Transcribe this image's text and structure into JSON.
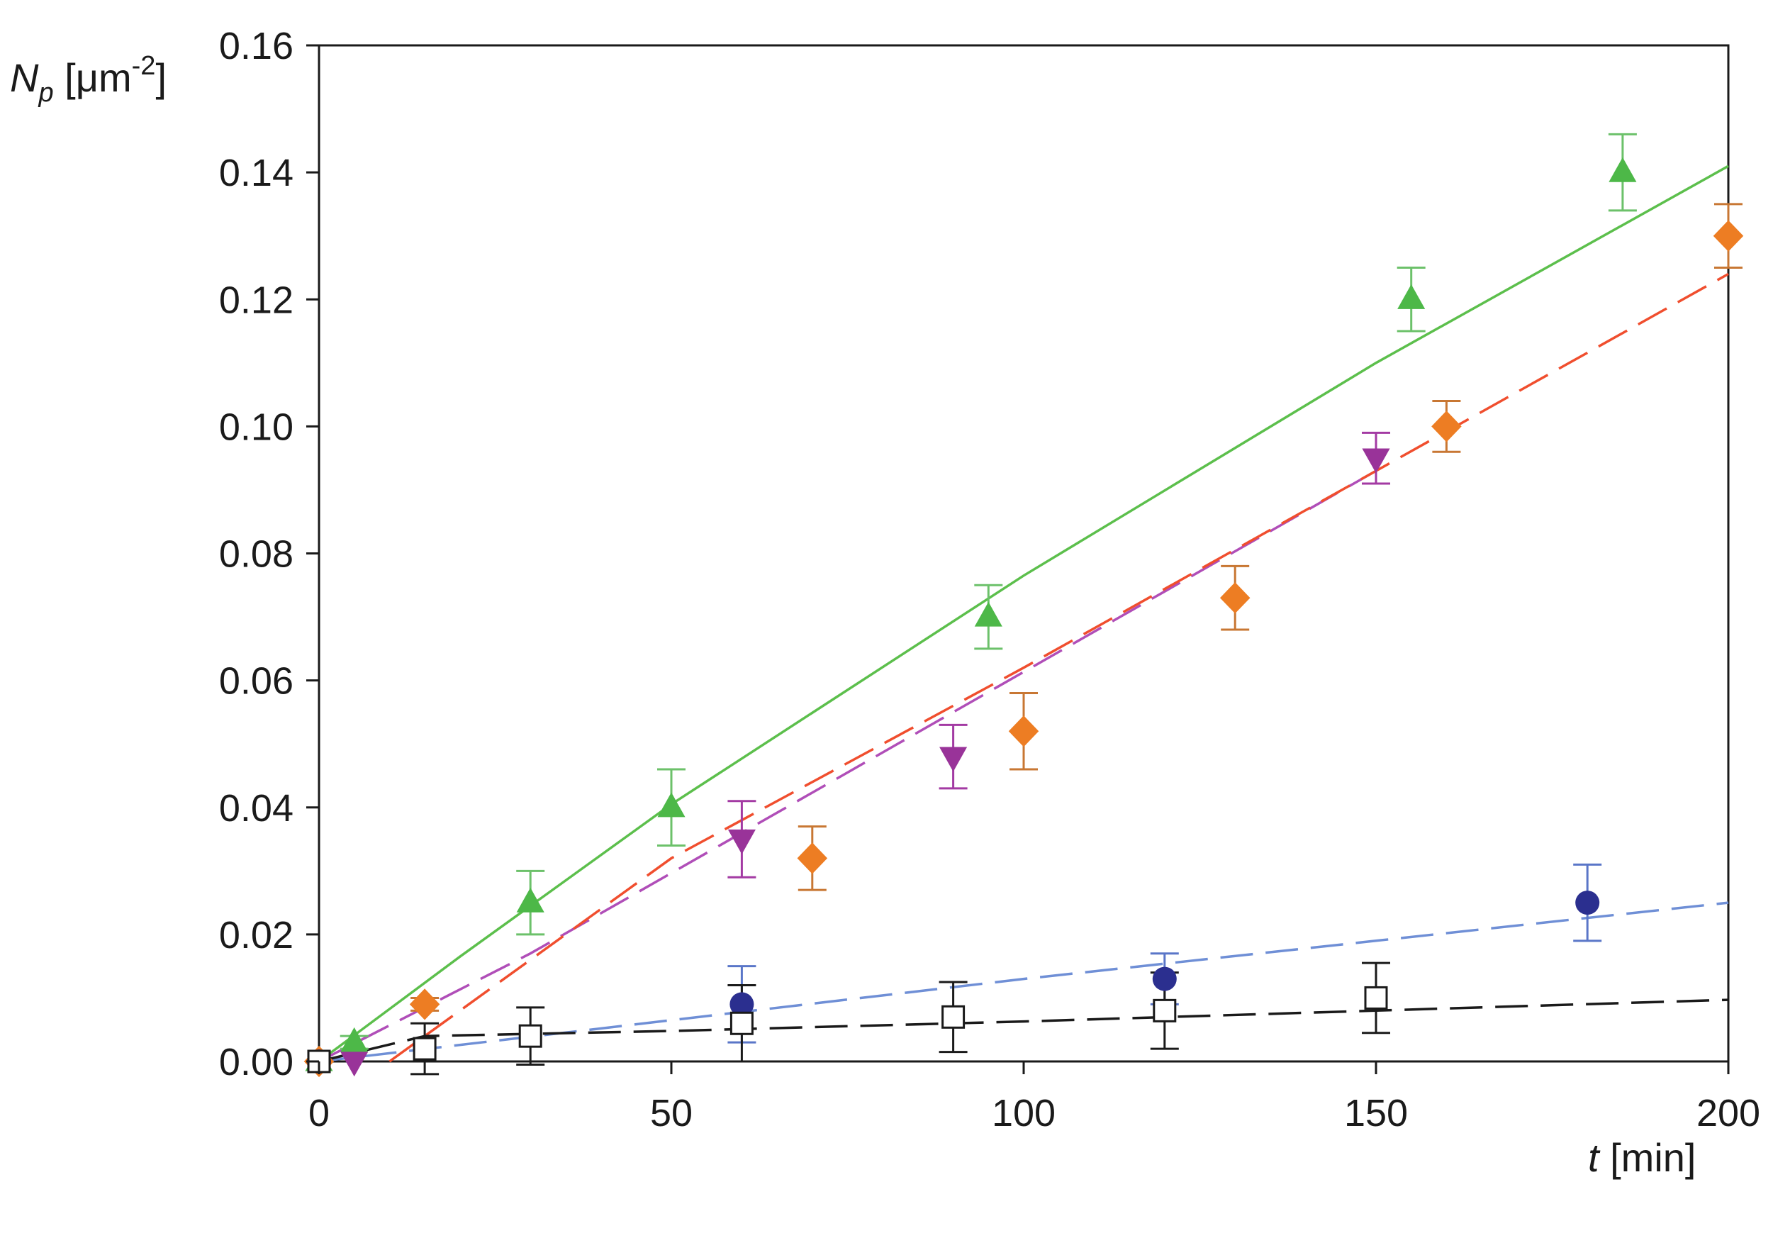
{
  "chart_data": {
    "type": "scatter",
    "title": "",
    "xlabel": {
      "var": "t",
      "unit": "[min]"
    },
    "ylabel": {
      "var": "N",
      "sub": "p",
      "unit_pre": "[μm",
      "sup": "-2",
      "unit_post": "]"
    },
    "xlim": [
      0,
      200
    ],
    "ylim": [
      0,
      0.16
    ],
    "xticks": [
      0,
      50,
      100,
      150,
      200
    ],
    "yticks": [
      0.0,
      0.02,
      0.04,
      0.06,
      0.08,
      0.1,
      0.12,
      0.14,
      0.16
    ],
    "ytick_decimals": 2,
    "grid": false,
    "legend": "none",
    "series": [
      {
        "marker": "triangle-up",
        "color": "#4db848",
        "errcolor": "#6cc16a",
        "points": [
          {
            "x": 0,
            "y": 0.0,
            "err": 0.0
          },
          {
            "x": 5,
            "y": 0.003,
            "err": 0.001
          },
          {
            "x": 30,
            "y": 0.025,
            "err": 0.005
          },
          {
            "x": 50,
            "y": 0.04,
            "err": 0.006
          },
          {
            "x": 95,
            "y": 0.07,
            "err": 0.005
          },
          {
            "x": 155,
            "y": 0.12,
            "err": 0.005
          },
          {
            "x": 185,
            "y": 0.14,
            "err": 0.006
          }
        ],
        "fit": {
          "style": "solid",
          "color": "#5cbf4c",
          "points": [
            [
              0,
              0.0
            ],
            [
              20,
              0.0165
            ],
            [
              50,
              0.0405
            ],
            [
              100,
              0.0765
            ],
            [
              150,
              0.11
            ],
            [
              200,
              0.141
            ]
          ]
        }
      },
      {
        "marker": "triangle-down",
        "color": "#993399",
        "errcolor": "#a33aa3",
        "points": [
          {
            "x": 5,
            "y": 0.0,
            "err": 0.0
          },
          {
            "x": 60,
            "y": 0.035,
            "err": 0.006
          },
          {
            "x": 90,
            "y": 0.048,
            "err": 0.005
          },
          {
            "x": 150,
            "y": 0.095,
            "err": 0.004
          }
        ],
        "fit": {
          "style": "dashed",
          "color": "#b04eb8",
          "points": [
            [
              0,
              0.0
            ],
            [
              30,
              0.017
            ],
            [
              60,
              0.036
            ],
            [
              90,
              0.055
            ],
            [
              120,
              0.074
            ],
            [
              150,
              0.093
            ]
          ]
        }
      },
      {
        "marker": "diamond",
        "color": "#ed7d23",
        "errcolor": "#c87733",
        "points": [
          {
            "x": 0,
            "y": 0.0,
            "err": 0.0
          },
          {
            "x": 15,
            "y": 0.009,
            "err": 0.001
          },
          {
            "x": 70,
            "y": 0.032,
            "err": 0.005
          },
          {
            "x": 100,
            "y": 0.052,
            "err": 0.006
          },
          {
            "x": 130,
            "y": 0.073,
            "err": 0.005
          },
          {
            "x": 160,
            "y": 0.1,
            "err": 0.004
          },
          {
            "x": 200,
            "y": 0.13,
            "err": 0.005
          }
        ],
        "fit": {
          "style": "dashed",
          "color": "#f04e2e",
          "points": [
            [
              10,
              0.0
            ],
            [
              50,
              0.032
            ],
            [
              100,
              0.062
            ],
            [
              150,
              0.093
            ],
            [
              200,
              0.124
            ]
          ]
        }
      },
      {
        "marker": "circle",
        "color": "#2b2f8f",
        "errcolor": "#5a76c8",
        "points": [
          {
            "x": 0,
            "y": 0.0,
            "err": 0.0
          },
          {
            "x": 60,
            "y": 0.009,
            "err": 0.006
          },
          {
            "x": 120,
            "y": 0.013,
            "err": 0.004
          },
          {
            "x": 180,
            "y": 0.025,
            "err": 0.006
          }
        ],
        "fit": {
          "style": "dashed",
          "color": "#6f8fd6",
          "points": [
            [
              0,
              0.0
            ],
            [
              50,
              0.0065
            ],
            [
              100,
              0.013
            ],
            [
              150,
              0.019
            ],
            [
              200,
              0.025
            ]
          ]
        }
      },
      {
        "marker": "square-open",
        "color": "#1a1a1a",
        "errcolor": "#1a1a1a",
        "points": [
          {
            "x": 0,
            "y": 0.0,
            "err": 0.0
          },
          {
            "x": 15,
            "y": 0.002,
            "err": 0.004
          },
          {
            "x": 30,
            "y": 0.004,
            "err": 0.0045
          },
          {
            "x": 60,
            "y": 0.006,
            "err": 0.006
          },
          {
            "x": 90,
            "y": 0.007,
            "err": 0.0055
          },
          {
            "x": 120,
            "y": 0.008,
            "err": 0.006
          },
          {
            "x": 150,
            "y": 0.01,
            "err": 0.0055
          }
        ],
        "fit": {
          "style": "dashed",
          "color": "#1a1a1a",
          "points": [
            [
              0,
              0.0
            ],
            [
              15,
              0.004
            ],
            [
              50,
              0.0048
            ],
            [
              100,
              0.0063
            ],
            [
              150,
              0.008
            ],
            [
              200,
              0.0097
            ]
          ]
        }
      }
    ]
  }
}
